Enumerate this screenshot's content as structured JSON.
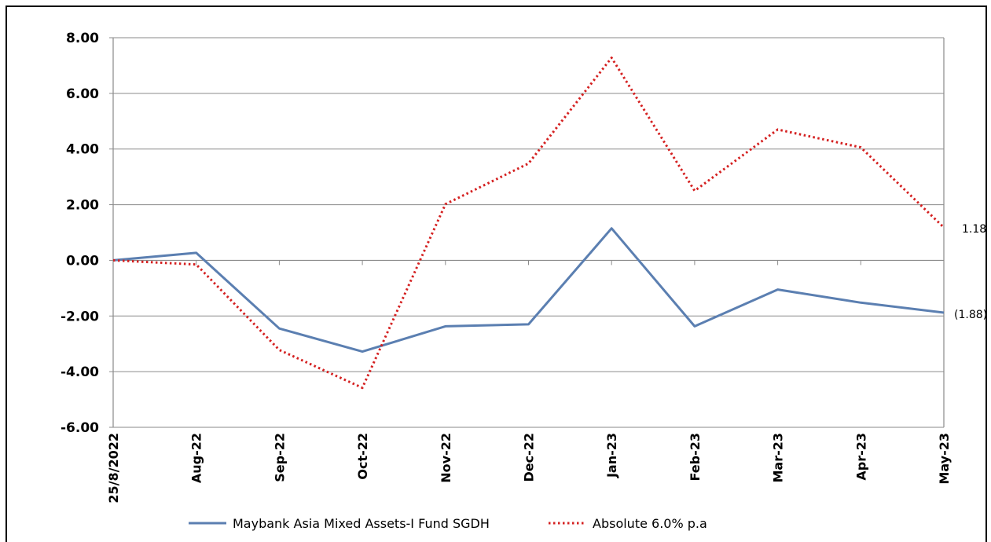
{
  "chart_data": {
    "type": "line",
    "categories": [
      "25/8/2022",
      "Aug-22",
      "Sep-22",
      "Oct-22",
      "Nov-22",
      "Dec-22",
      "Jan-23",
      "Feb-23",
      "Mar-23",
      "Apr-23",
      "May-23"
    ],
    "series": [
      {
        "name": "Maybank Asia Mixed Assets-I Fund SGDH",
        "color": "#5b7fb1",
        "style": "solid",
        "values": [
          0.0,
          0.27,
          -2.45,
          -3.28,
          -2.37,
          -2.3,
          1.15,
          -2.37,
          -1.05,
          -1.52,
          -1.88
        ]
      },
      {
        "name": "Absolute 6.0% p.a",
        "color": "#d42020",
        "style": "dotted",
        "values": [
          0.0,
          -0.15,
          -3.22,
          -4.58,
          2.02,
          3.48,
          7.28,
          2.5,
          4.7,
          4.06,
          1.18
        ]
      }
    ],
    "end_labels": [
      "1.18",
      "(1.88)"
    ],
    "yticks": [
      "8.00",
      "6.00",
      "4.00",
      "2.00",
      "0.00",
      "-2.00",
      "-4.00",
      "-6.00"
    ],
    "ylim": [
      -6,
      8
    ],
    "grid": true,
    "legend_position": "bottom"
  }
}
